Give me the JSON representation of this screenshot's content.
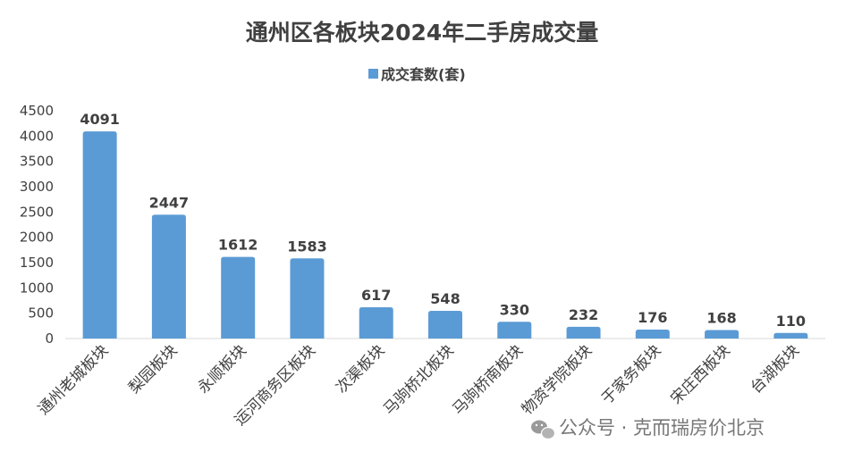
{
  "chart_data": {
    "type": "bar",
    "title": "通州区各板块2024年二手房成交量",
    "legend": {
      "position": "top",
      "entries": [
        "成交套数(套)"
      ]
    },
    "series": [
      {
        "name": "成交套数(套)",
        "values": [
          4091,
          2447,
          1612,
          1583,
          617,
          548,
          330,
          232,
          176,
          168,
          110
        ]
      }
    ],
    "categories": [
      "通州老城板块",
      "梨园板块",
      "永顺板块",
      "运河商务区板块",
      "次渠板块",
      "马驹桥北板块",
      "马驹桥南板块",
      "物资学院板块",
      "于家务板块",
      "宋庄西板块",
      "台湖板块"
    ],
    "ylim": [
      0,
      4500
    ],
    "yticks": [
      "0",
      "500",
      "1000",
      "1500",
      "2000",
      "2500",
      "3000",
      "3500",
      "4000",
      "4500"
    ],
    "grid": false,
    "bar_color": "#5B9BD5",
    "xlabel": "",
    "ylabel": ""
  },
  "watermark": {
    "text": "公众号 · 克而瑞房价北京",
    "icon": "wechat-icon"
  }
}
